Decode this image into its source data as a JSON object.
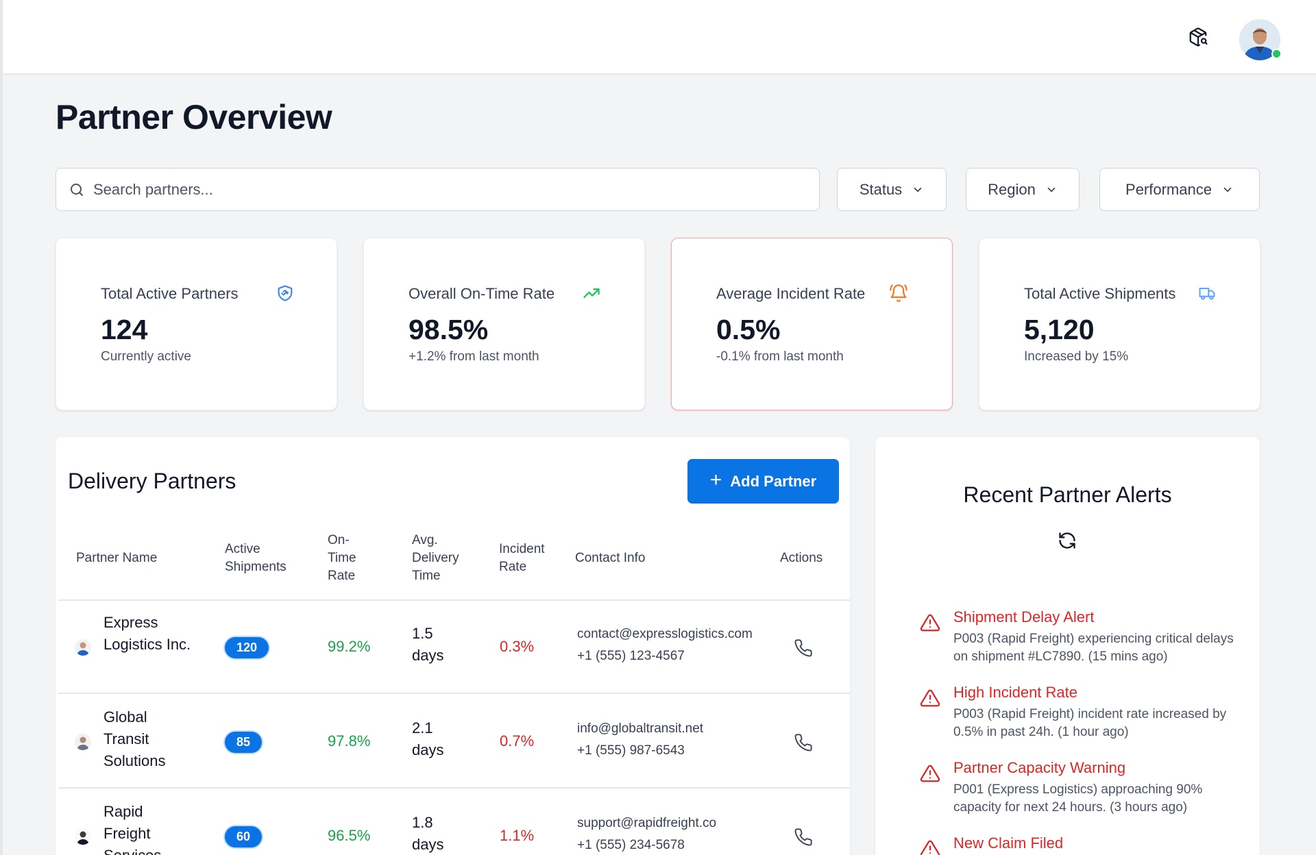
{
  "header": {
    "package_icon": "package-search-icon",
    "avatar_icon": "user-avatar",
    "status_color": "#22c55e"
  },
  "page": {
    "title": "Partner Overview"
  },
  "search": {
    "placeholder": "Search partners..."
  },
  "filters": {
    "status": "Status",
    "region": "Region",
    "performance": "Performance"
  },
  "stats": [
    {
      "label": "Total Active Partners",
      "value": "124",
      "sub": "Currently active",
      "icon": "handshake-icon",
      "icon_color": "#3b82f6"
    },
    {
      "label": "Overall On-Time Rate",
      "value": "98.5%",
      "sub": "+1.2% from last month",
      "icon": "trending-up-icon",
      "icon_color": "#22c55e"
    },
    {
      "label": "Average Incident Rate",
      "value": "0.5%",
      "sub": "-0.1% from last month",
      "icon": "bell-alert-icon",
      "icon_color": "#f97316"
    },
    {
      "label": "Total Active Shipments",
      "value": "5,120",
      "sub": "Increased by 15%",
      "icon": "truck-icon",
      "icon_color": "#60a5fa"
    }
  ],
  "partners_panel": {
    "title": "Delivery Partners",
    "add_button": "Add Partner",
    "columns": {
      "name": "Partner Name",
      "active_1": "Active",
      "active_2": "Shipments",
      "ontime_1": "On-",
      "ontime_2": "Time",
      "ontime_3": "Rate",
      "delivery_1": "Avg.",
      "delivery_2": "Delivery",
      "delivery_3": "Time",
      "incident_1": "Incident",
      "incident_2": "Rate",
      "contact": "Contact Info",
      "actions": "Actions"
    },
    "rows": [
      {
        "name": "Express Logistics Inc.",
        "active": "120",
        "ontime": "99.2%",
        "delivery": "1.5 days",
        "incident": "0.3%",
        "email": "contact@expresslogistics.com",
        "phone": "+1 (555) 123-4567"
      },
      {
        "name": "Global Transit Solutions",
        "active": "85",
        "ontime": "97.8%",
        "delivery": "2.1 days",
        "incident": "0.7%",
        "email": "info@globaltransit.net",
        "phone": "+1 (555) 987-6543"
      },
      {
        "name": "Rapid Freight Services",
        "active": "60",
        "ontime": "96.5%",
        "delivery": "1.8 days",
        "incident": "1.1%",
        "email": "support@rapidfreight.co",
        "phone": "+1 (555) 234-5678"
      }
    ]
  },
  "alerts_panel": {
    "title": "Recent Partner Alerts",
    "refresh_icon": "refresh-icon",
    "items": [
      {
        "title": "Shipment Delay Alert",
        "desc": "P003 (Rapid Freight) experiencing critical delays on shipment #LC7890. (15 mins ago)"
      },
      {
        "title": "High Incident Rate",
        "desc": "P003 (Rapid Freight) incident rate increased by 0.5% in past 24h. (1 hour ago)"
      },
      {
        "title": "Partner Capacity Warning",
        "desc": "P001 (Express Logistics) approaching 90% capacity for next 24 hours. (3 hours ago)"
      },
      {
        "title": "New Claim Filed",
        "desc": ""
      }
    ]
  }
}
